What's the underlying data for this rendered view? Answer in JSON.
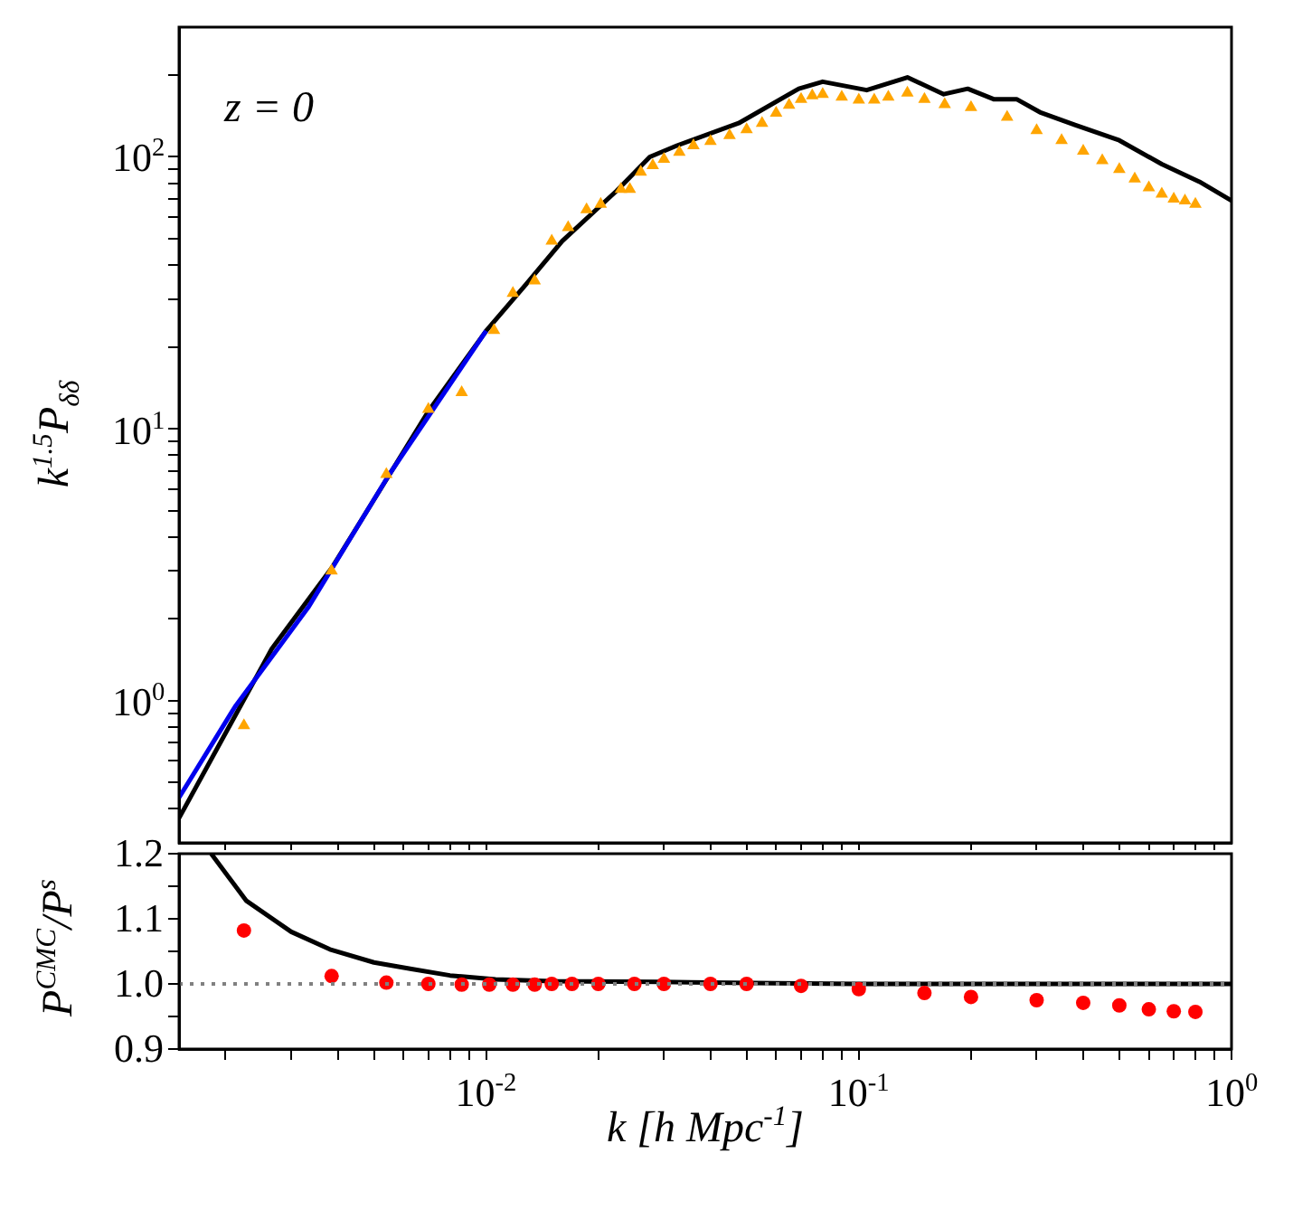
{
  "chart_data": [
    {
      "type": "line",
      "ylabel": "k$^{1.5}$P$_{δδ}$",
      "annotations": [
        "z = 0"
      ],
      "log": "xy",
      "xlim": [
        0.0015,
        1
      ],
      "ylim": [
        0.3,
        300
      ],
      "xticks": [
        {
          "value": 0.002,
          "label": null
        },
        {
          "value": 0.003,
          "label": null
        },
        {
          "value": 0.004,
          "label": null
        },
        {
          "value": 0.005,
          "label": null
        },
        {
          "value": 0.006,
          "label": null
        },
        {
          "value": 0.007,
          "label": null
        },
        {
          "value": 0.008,
          "label": null
        },
        {
          "value": 0.009,
          "label": null
        },
        {
          "value": 0.01,
          "label": null
        },
        {
          "value": 0.02,
          "label": null
        },
        {
          "value": 0.03,
          "label": null
        },
        {
          "value": 0.04,
          "label": null
        },
        {
          "value": 0.05,
          "label": null
        },
        {
          "value": 0.06,
          "label": null
        },
        {
          "value": 0.07,
          "label": null
        },
        {
          "value": 0.08,
          "label": null
        },
        {
          "value": 0.09,
          "label": null
        },
        {
          "value": 0.1,
          "label": null
        },
        {
          "value": 0.2,
          "label": null
        },
        {
          "value": 0.3,
          "label": null
        },
        {
          "value": 0.4,
          "label": null
        },
        {
          "value": 0.5,
          "label": null
        },
        {
          "value": 0.6,
          "label": null
        },
        {
          "value": 0.7,
          "label": null
        },
        {
          "value": 0.8,
          "label": null
        },
        {
          "value": 0.9,
          "label": null
        }
      ],
      "yticks": [
        {
          "value": 0.4,
          "label": null
        },
        {
          "value": 0.5,
          "label": null
        },
        {
          "value": 0.6,
          "label": null
        },
        {
          "value": 0.7,
          "label": null
        },
        {
          "value": 0.8,
          "label": null
        },
        {
          "value": 0.9,
          "label": null
        },
        {
          "value": 1,
          "label": "10$^{0}$"
        },
        {
          "value": 2,
          "label": null
        },
        {
          "value": 3,
          "label": null
        },
        {
          "value": 4,
          "label": null
        },
        {
          "value": 5,
          "label": null
        },
        {
          "value": 6,
          "label": null
        },
        {
          "value": 7,
          "label": null
        },
        {
          "value": 8,
          "label": null
        },
        {
          "value": 9,
          "label": null
        },
        {
          "value": 10,
          "label": "10$^{1}$"
        },
        {
          "value": 20,
          "label": null
        },
        {
          "value": 30,
          "label": null
        },
        {
          "value": 40,
          "label": null
        },
        {
          "value": 50,
          "label": null
        },
        {
          "value": 60,
          "label": null
        },
        {
          "value": 70,
          "label": null
        },
        {
          "value": 80,
          "label": null
        },
        {
          "value": 90,
          "label": null
        },
        {
          "value": 100,
          "label": "10$^{2}$"
        },
        {
          "value": 200,
          "label": null
        }
      ],
      "tick_labels": "y",
      "series": [
        {
          "type": "scatter",
          "marker": "triangle",
          "color": "#ffa500",
          "x": [
            0.00224,
            0.00385,
            0.0054,
            0.007,
            0.0086,
            0.0105,
            0.0118,
            0.0135,
            0.015,
            0.0166,
            0.0186,
            0.0203,
            0.023,
            0.0243,
            0.026,
            0.028,
            0.03,
            0.033,
            0.036,
            0.04,
            0.045,
            0.05,
            0.055,
            0.06,
            0.065,
            0.07,
            0.075,
            0.08,
            0.09,
            0.1,
            0.11,
            0.12,
            0.135,
            0.15,
            0.17,
            0.2,
            0.25,
            0.3,
            0.35,
            0.4,
            0.45,
            0.5,
            0.55,
            0.6,
            0.65,
            0.7,
            0.75,
            0.8
          ],
          "values": [
            0.81,
            3.0,
            6.8,
            11.8,
            13.6,
            23,
            31.5,
            35,
            49,
            55,
            64,
            67,
            76,
            76,
            88,
            93,
            98,
            104,
            110,
            114,
            120,
            126,
            133,
            145,
            155,
            163,
            168,
            170,
            166,
            162,
            162,
            166,
            172,
            163,
            156,
            152,
            140,
            125,
            115,
            105,
            97,
            90,
            83,
            77,
            73,
            70,
            69,
            67
          ]
        },
        {
          "type": "line",
          "marker": "none",
          "color": "#0000ee",
          "x": [
            0.0015,
            0.00212,
            0.00333,
            0.0055,
            0.01
          ],
          "values": [
            0.44,
            0.95,
            2.2,
            6.8,
            22.9
          ]
        },
        {
          "type": "line",
          "marker": "none",
          "color": "#000000",
          "x": [
            0.0015,
            0.00266,
            0.00385,
            0.00551,
            0.007,
            0.01,
            0.0128,
            0.016,
            0.0224,
            0.0275,
            0.0325,
            0.0476,
            0.069,
            0.08,
            0.105,
            0.135,
            0.169,
            0.196,
            0.23,
            0.265,
            0.306,
            0.38,
            0.5,
            0.65,
            0.82,
            1.0
          ],
          "values": [
            0.37,
            1.55,
            3.07,
            6.8,
            11.6,
            22.9,
            34,
            49,
            75,
            100,
            110,
            133,
            178,
            189,
            176,
            196,
            170,
            178,
            163,
            163,
            146,
            131,
            115,
            94,
            81,
            69
          ]
        }
      ]
    },
    {
      "type": "line",
      "xlabel": "k [h Mpc$^{-1}$]",
      "ylabel": "P$^{CMC}$/P$^{s}$",
      "log": "x",
      "xlim": [
        0.0015,
        1
      ],
      "ylim": [
        0.9,
        1.2
      ],
      "xticks": [
        {
          "value": 0.002,
          "label": null
        },
        {
          "value": 0.003,
          "label": null
        },
        {
          "value": 0.004,
          "label": null
        },
        {
          "value": 0.005,
          "label": null
        },
        {
          "value": 0.006,
          "label": null
        },
        {
          "value": 0.007,
          "label": null
        },
        {
          "value": 0.008,
          "label": null
        },
        {
          "value": 0.009,
          "label": null
        },
        {
          "value": 0.01,
          "label": "10$^{-2}$"
        },
        {
          "value": 0.02,
          "label": null
        },
        {
          "value": 0.03,
          "label": null
        },
        {
          "value": 0.04,
          "label": null
        },
        {
          "value": 0.05,
          "label": null
        },
        {
          "value": 0.06,
          "label": null
        },
        {
          "value": 0.07,
          "label": null
        },
        {
          "value": 0.08,
          "label": null
        },
        {
          "value": 0.09,
          "label": null
        },
        {
          "value": 0.1,
          "label": "10$^{-1}$"
        },
        {
          "value": 0.2,
          "label": null
        },
        {
          "value": 0.3,
          "label": null
        },
        {
          "value": 0.4,
          "label": null
        },
        {
          "value": 0.5,
          "label": null
        },
        {
          "value": 0.6,
          "label": null
        },
        {
          "value": 0.7,
          "label": null
        },
        {
          "value": 0.8,
          "label": null
        },
        {
          "value": 0.9,
          "label": null
        },
        {
          "value": 1,
          "label": "10$^{0}$"
        }
      ],
      "yticks": [
        0.9,
        {
          "value": 0.95,
          "label": null
        },
        {
          "value": 1,
          "label": "1.0"
        },
        {
          "value": 1.05,
          "label": null
        },
        1.1,
        {
          "value": 1.15,
          "label": null
        },
        1.2
      ],
      "ref_lines": [
        {
          "axis": "y",
          "value": 1,
          "color": "#808080",
          "line_style": "dotted"
        }
      ],
      "series": [
        {
          "type": "scatter",
          "marker": "circle",
          "color": "#ff0000",
          "x": [
            0.00224,
            0.00385,
            0.0054,
            0.007,
            0.0086,
            0.0102,
            0.0118,
            0.0135,
            0.015,
            0.017,
            0.02,
            0.025,
            0.03,
            0.04,
            0.05,
            0.07,
            0.1,
            0.15,
            0.2,
            0.3,
            0.4,
            0.5,
            0.6,
            0.7,
            0.8
          ],
          "values": [
            1.082,
            1.012,
            1.002,
            1.0,
            0.999,
            0.999,
            0.999,
            0.999,
            1.0,
            1.0,
            1.0,
            1.0,
            1.0,
            1.0,
            1.0,
            0.997,
            0.992,
            0.986,
            0.98,
            0.975,
            0.971,
            0.967,
            0.961,
            0.958,
            0.957
          ]
        },
        {
          "type": "line",
          "marker": "none",
          "color": "#000000",
          "x": [
            0.00183,
            0.00227,
            0.003,
            0.00381,
            0.005,
            0.00631,
            0.008,
            0.0106,
            0.015,
            0.0294,
            0.06,
            0.1,
            1.0
          ],
          "values": [
            1.2,
            1.128,
            1.08,
            1.053,
            1.033,
            1.023,
            1.013,
            1.007,
            1.004,
            1.003,
            1.001,
            1.0,
            1.0
          ]
        }
      ]
    }
  ]
}
